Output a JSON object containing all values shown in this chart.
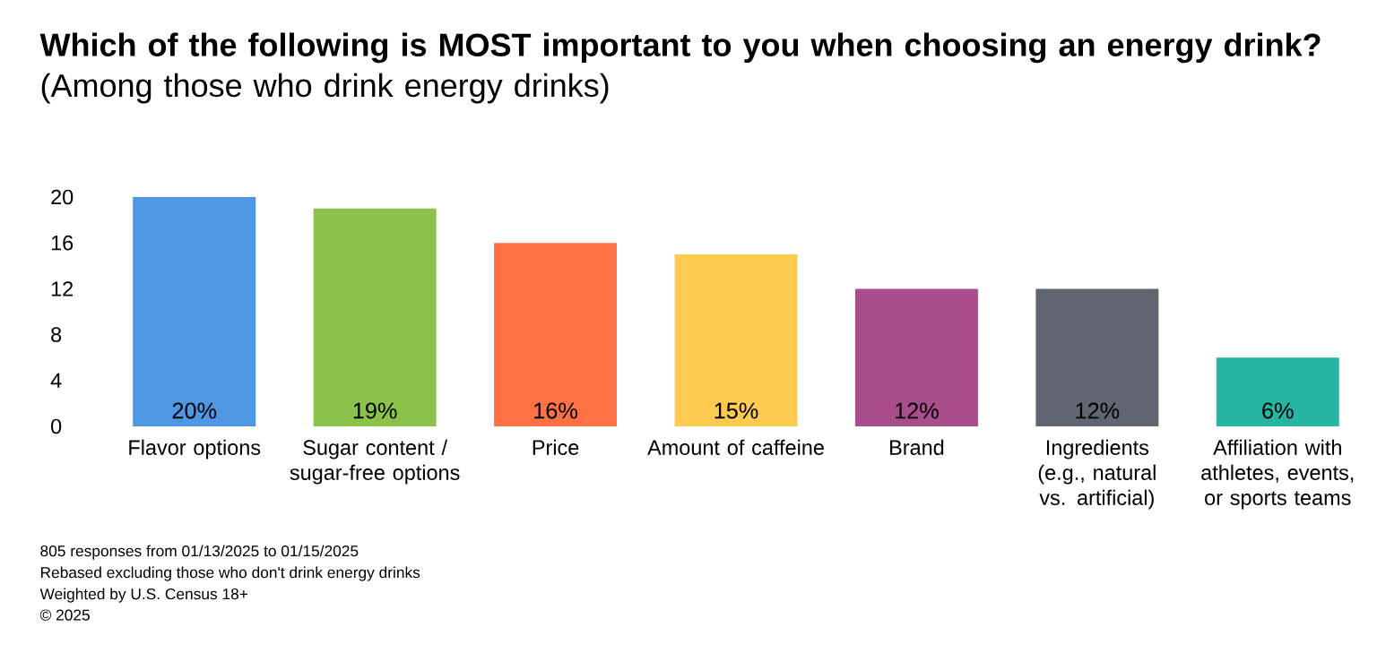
{
  "chart_data": {
    "type": "bar",
    "title": "**Which of the following is MOST important to you when choosing an energy drink?** (Among those who drink energy drinks)",
    "categories": [
      "Flavor options",
      "Sugar content / sugar-free options",
      "Price",
      "Amount of caffeine",
      "Brand",
      "Ingredients (e.g., natural vs. artificial)",
      "Affiliation with athletes, events, or sports teams"
    ],
    "values": [
      20,
      19,
      16,
      15,
      12,
      12,
      6
    ],
    "colors": [
      "#4f97e3",
      "#8bc34a",
      "#ff7043",
      "#ffca4f",
      "#a94e8c",
      "#5f6571",
      "#26b5a0"
    ],
    "value_labels": [
      "20%",
      "19%",
      "16%",
      "15%",
      "12%",
      "12%",
      "6%"
    ],
    "ylim": [
      0,
      20
    ],
    "yticks": [
      0,
      4,
      8,
      12,
      16,
      20
    ],
    "annotations": [
      "805 responses from 01/13/2025 to 01/15/2025",
      "Rebased excluding those who don't drink energy drinks",
      "Weighted by U.S. Census 18+",
      "© 2025"
    ]
  }
}
